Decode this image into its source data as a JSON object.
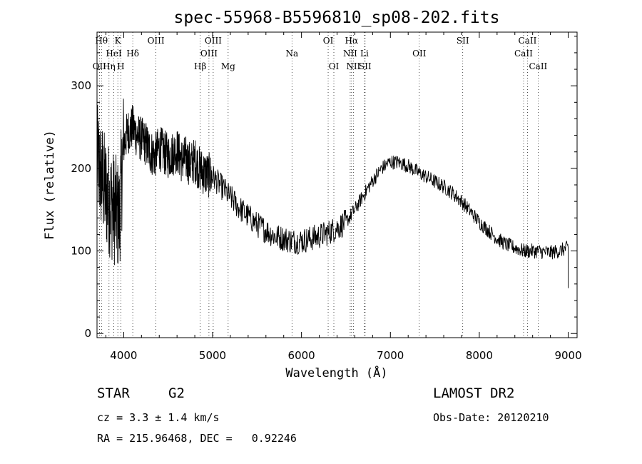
{
  "chart_data": {
    "type": "line",
    "title": "spec-55968-B5596810_sp08-202.fits",
    "xlabel": "Wavelength (Å)",
    "ylabel": "Flux (relative)",
    "xlim": [
      3700,
      9100
    ],
    "ylim": [
      -5,
      365
    ],
    "xticks": [
      4000,
      5000,
      6000,
      7000,
      8000,
      9000
    ],
    "yticks": [
      0,
      100,
      200,
      300
    ],
    "grid": false,
    "series": [
      {
        "x": [
          3700,
          3750,
          3800,
          3850,
          3900,
          3950,
          4000,
          4050,
          4100,
          4150,
          4200,
          4250,
          4300,
          4350,
          4400,
          4450,
          4500,
          4550,
          4600,
          4650,
          4700,
          4750,
          4800,
          4850,
          4900,
          4950,
          5000,
          5100,
          5200,
          5300,
          5400,
          5500,
          5600,
          5700,
          5800,
          5900,
          6000,
          6100,
          6200,
          6300,
          6400,
          6500,
          6600,
          6700,
          6800,
          6900,
          7000,
          7100,
          7200,
          7300,
          7400,
          7500,
          7600,
          7700,
          7800,
          7900,
          8000,
          8100,
          8200,
          8300,
          8400,
          8500,
          8600,
          8700,
          8800,
          8900,
          9000
        ],
        "y": [
          210,
          190,
          170,
          160,
          150,
          140,
          230,
          245,
          250,
          240,
          235,
          230,
          220,
          215,
          225,
          220,
          215,
          218,
          222,
          210,
          212,
          205,
          210,
          200,
          195,
          192,
          190,
          178,
          165,
          152,
          142,
          132,
          125,
          118,
          115,
          112,
          112,
          115,
          118,
          122,
          128,
          135,
          150,
          168,
          185,
          200,
          208,
          207,
          203,
          196,
          190,
          184,
          178,
          170,
          160,
          148,
          135,
          125,
          115,
          108,
          104,
          100,
          100,
          99,
          98,
          100,
          104
        ]
      }
    ],
    "spectral_lines": [
      {
        "label": "OII",
        "x": 3727,
        "row": 3
      },
      {
        "label": "Hθ",
        "x": 3750,
        "row": 1
      },
      {
        "label": "Hη",
        "x": 3835,
        "row": 3
      },
      {
        "label": "HeI",
        "x": 3889,
        "row": 2
      },
      {
        "label": "K",
        "x": 3934,
        "row": 1
      },
      {
        "label": "H",
        "x": 3968,
        "row": 3
      },
      {
        "label": "Hδ",
        "x": 4102,
        "row": 2
      },
      {
        "label": "OIII",
        "x": 4363,
        "row": 1
      },
      {
        "label": "Hβ",
        "x": 4861,
        "row": 3
      },
      {
        "label": "OIII",
        "x": 4959,
        "row": 2
      },
      {
        "label": "OIII",
        "x": 5007,
        "row": 1
      },
      {
        "label": "Mg",
        "x": 5175,
        "row": 3
      },
      {
        "label": "Na",
        "x": 5893,
        "row": 2
      },
      {
        "label": "OI",
        "x": 6300,
        "row": 1
      },
      {
        "label": "OI",
        "x": 6364,
        "row": 3
      },
      {
        "label": "NII",
        "x": 6548,
        "row": 2
      },
      {
        "label": "Hα",
        "x": 6563,
        "row": 1
      },
      {
        "label": "NII",
        "x": 6583,
        "row": 3
      },
      {
        "label": "Li",
        "x": 6708,
        "row": 2
      },
      {
        "label": "SII",
        "x": 6716,
        "row": 3
      },
      {
        "label": "OII",
        "x": 7325,
        "row": 2
      },
      {
        "label": "SII",
        "x": 7814,
        "row": 1
      },
      {
        "label": "CaII",
        "x": 8498,
        "row": 2
      },
      {
        "label": "CaII",
        "x": 8542,
        "row": 1
      },
      {
        "label": "CaII",
        "x": 8662,
        "row": 3
      }
    ]
  },
  "info": {
    "object_class": "STAR",
    "subclass": "G2",
    "survey": "LAMOST DR2",
    "cz": "cz = 3.3 ± 1.4 km/s",
    "obs_date": "Obs-Date: 20120210",
    "coords": "RA = 215.96468, DEC =   0.92246"
  }
}
